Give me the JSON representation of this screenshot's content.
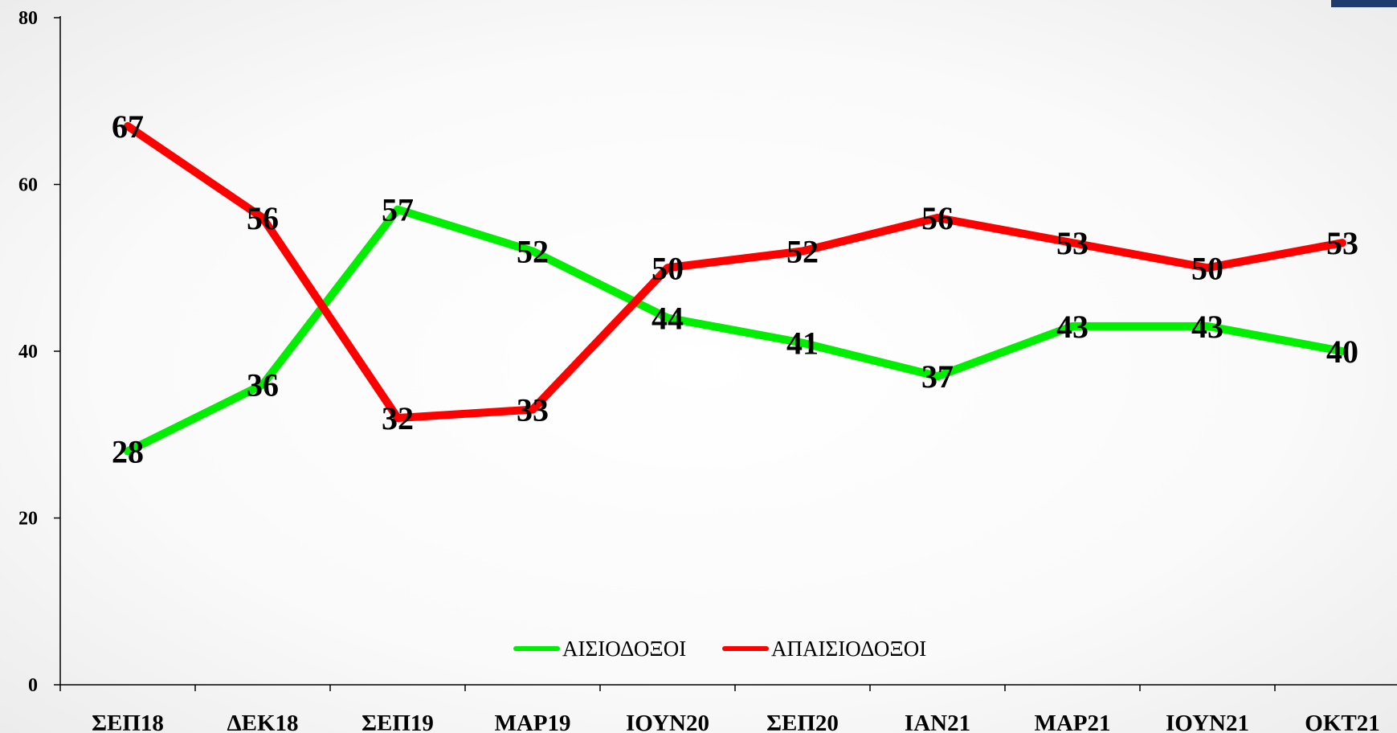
{
  "chart_data": {
    "type": "line",
    "categories": [
      "ΣΕΠ18",
      "ΔΕΚ18",
      "ΣΕΠ19",
      "ΜΑΡ19",
      "ΙΟΥΝ20",
      "ΣΕΠ20",
      "ΙΑΝ21",
      "ΜΑΡ21",
      "ΙΟΥΝ21",
      "ΟΚΤ21"
    ],
    "series": [
      {
        "name": "ΑΙΣΙΟΔΟΞΟΙ",
        "color": "#00ee00",
        "values": [
          28,
          36,
          57,
          52,
          44,
          41,
          37,
          43,
          43,
          40
        ]
      },
      {
        "name": "ΑΠΑΙΣΙΟΔΟΞΟΙ",
        "color": "#ff0000",
        "values": [
          67,
          56,
          32,
          33,
          50,
          52,
          56,
          53,
          50,
          53
        ]
      }
    ],
    "ylim": [
      0,
      80
    ],
    "yticks": [
      0,
      20,
      40,
      60,
      80
    ],
    "title": "",
    "xlabel": "",
    "ylabel": "",
    "grid": false,
    "legend": "bottom-center"
  }
}
